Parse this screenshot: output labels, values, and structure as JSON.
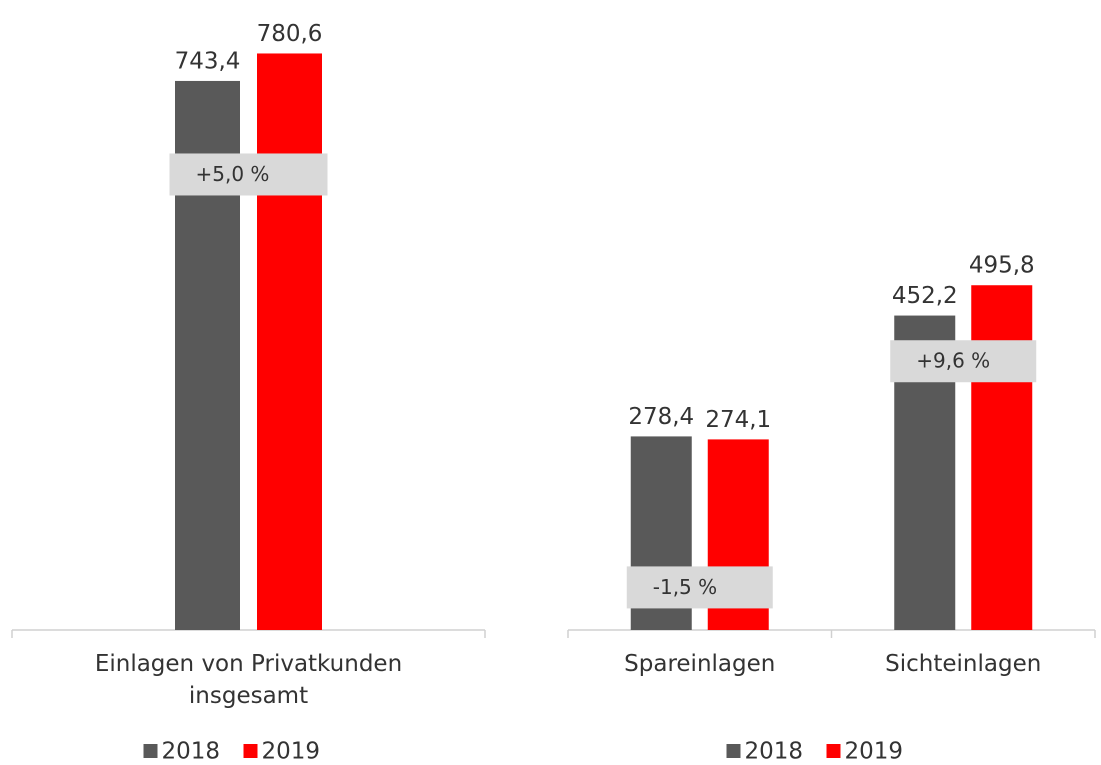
{
  "chart_data": [
    {
      "type": "bar",
      "categories": [
        "Einlagen von Privatkunden insgesamt"
      ],
      "series": [
        {
          "name": "2018",
          "color": "#595959",
          "values": [
            743.4
          ],
          "value_labels": [
            "743,4"
          ]
        },
        {
          "name": "2019",
          "color": "#ff0000",
          "values": [
            780.6
          ],
          "value_labels": [
            "780,6"
          ]
        }
      ],
      "annotations": [
        "+5,0 %"
      ],
      "ylim": [
        0,
        853
      ]
    },
    {
      "type": "bar",
      "categories": [
        "Spareinlagen",
        "Sichteinlagen"
      ],
      "series": [
        {
          "name": "2018",
          "color": "#595959",
          "values": [
            278.4,
            452.2
          ],
          "value_labels": [
            "278,4",
            "452,2"
          ]
        },
        {
          "name": "2019",
          "color": "#ff0000",
          "values": [
            274.1,
            495.8
          ],
          "value_labels": [
            "274,1",
            "495,8"
          ]
        }
      ],
      "annotations": [
        "-1,5 %",
        "+9,6 %"
      ],
      "ylim": [
        0,
        906
      ]
    }
  ]
}
